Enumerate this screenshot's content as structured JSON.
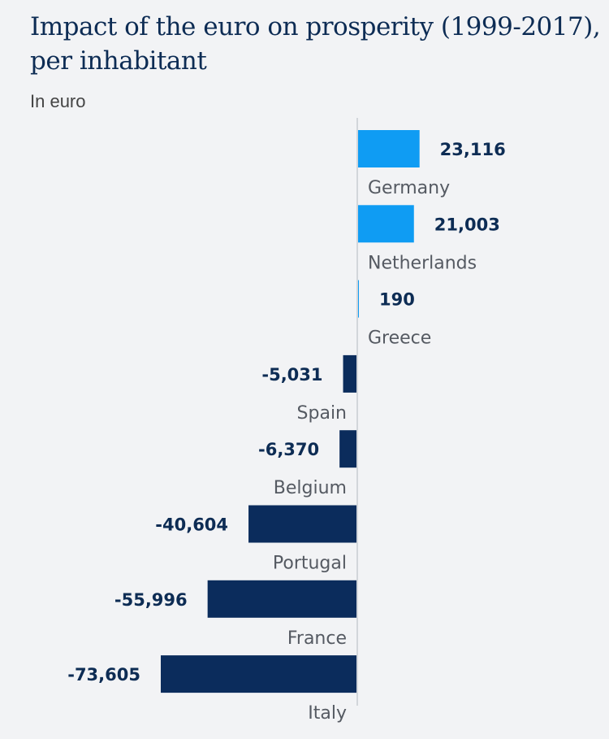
{
  "chart_data": {
    "type": "bar",
    "orientation": "horizontal",
    "title": "Impact of the euro on prosperity (1999-2017), per inhabitant",
    "subtitle": "In euro",
    "xlabel": "",
    "ylabel": "",
    "categories": [
      "Germany",
      "Netherlands",
      "Greece",
      "Spain",
      "Belgium",
      "Portugal",
      "France",
      "Italy"
    ],
    "values": [
      23116,
      21003,
      190,
      -5031,
      -6370,
      -40604,
      -55996,
      -73605
    ],
    "value_labels": [
      "23,116",
      "21,003",
      "190",
      "-5,031",
      "-6,370",
      "-40,604",
      "-55,996",
      "-73,605"
    ],
    "xlim": [
      -73605,
      23116
    ],
    "grid": false,
    "colors": {
      "positive": "#0f9cf3",
      "negative": "#0b2c5c"
    }
  }
}
